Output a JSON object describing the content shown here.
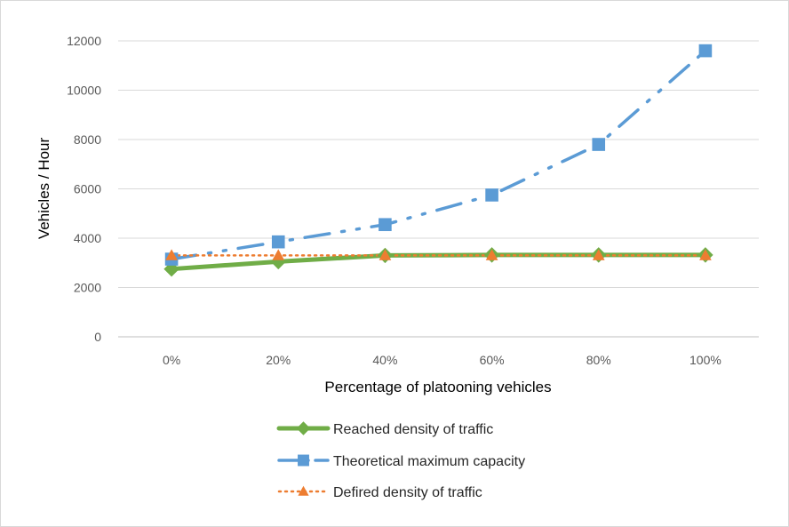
{
  "chart_data": {
    "type": "line",
    "title": "",
    "xlabel": "Percentage of platooning vehicles",
    "ylabel": "Vehicles / Hour",
    "categories": [
      "0%",
      "20%",
      "40%",
      "60%",
      "80%",
      "100%"
    ],
    "ylim": [
      0,
      12000
    ],
    "yticks": [
      "0",
      "2000",
      "4000",
      "6000",
      "8000",
      "10000",
      "12000"
    ],
    "ytick_values": [
      0,
      2000,
      4000,
      6000,
      8000,
      10000,
      12000
    ],
    "grid": true,
    "legend_position": "bottom",
    "series": [
      {
        "name": "Reached density of traffic",
        "values": [
          2750,
          3050,
          3300,
          3320,
          3320,
          3320
        ],
        "color": "#70ad47",
        "marker": "diamond",
        "line_style": "solid"
      },
      {
        "name": "Theoretical maximum capacity",
        "values": [
          3150,
          3850,
          4550,
          5750,
          7800,
          11600
        ],
        "color": "#5b9bd5",
        "marker": "square",
        "line_style": "long-dash-dot-dot"
      },
      {
        "name": "Defired density of traffic",
        "values": [
          3300,
          3300,
          3300,
          3300,
          3300,
          3300
        ],
        "color": "#ed7d31",
        "marker": "triangle",
        "line_style": "dotted"
      }
    ]
  }
}
